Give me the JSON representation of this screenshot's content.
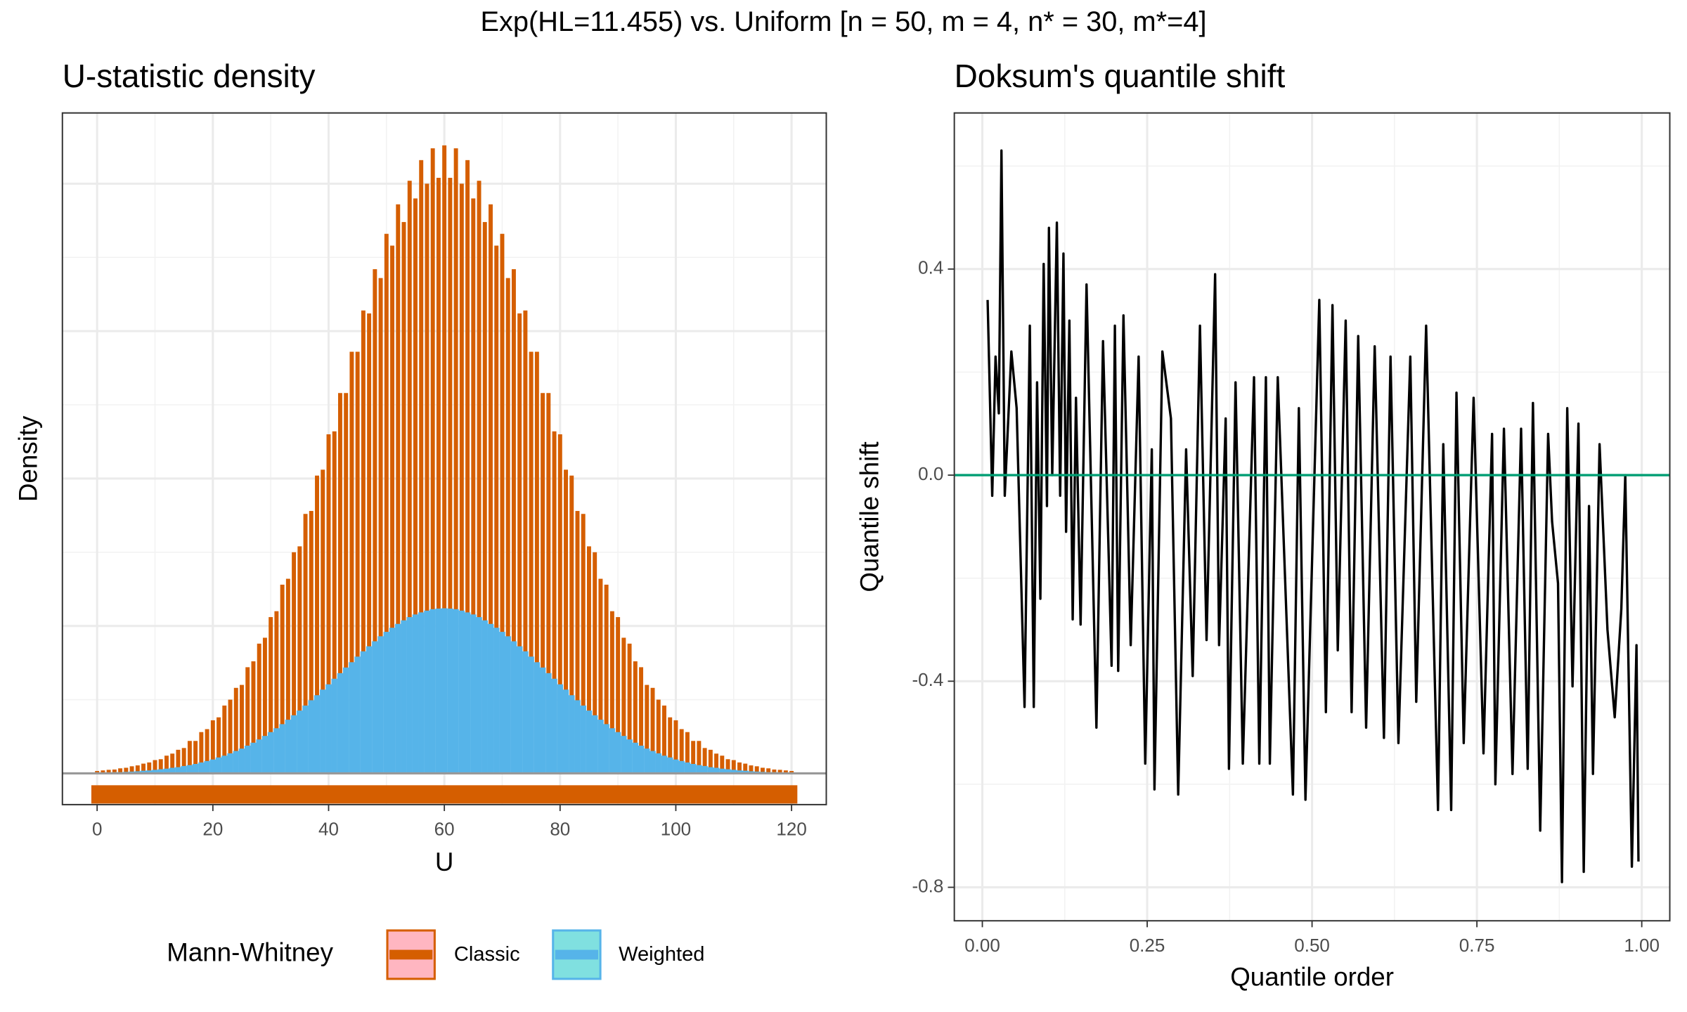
{
  "title": "Exp(HL=11.455) vs. Uniform [n = 50, m = 4, n* = 30, m*=4]",
  "chart_data": [
    {
      "type": "bar",
      "title": "U-statistic density",
      "x_label": "U",
      "y_label": "Density",
      "legend_title": "Mann-Whitney",
      "x": [
        0,
        1,
        2,
        3,
        4,
        5,
        6,
        7,
        8,
        9,
        10,
        11,
        12,
        13,
        14,
        15,
        16,
        17,
        18,
        19,
        20,
        21,
        22,
        23,
        24,
        25,
        26,
        27,
        28,
        29,
        30,
        31,
        32,
        33,
        34,
        35,
        36,
        37,
        38,
        39,
        40,
        41,
        42,
        43,
        44,
        45,
        46,
        47,
        48,
        49,
        50,
        51,
        52,
        53,
        54,
        55,
        56,
        57,
        58,
        59,
        60,
        61,
        62,
        63,
        64,
        65,
        66,
        67,
        68,
        69,
        70,
        71,
        72,
        73,
        74,
        75,
        76,
        77,
        78,
        79,
        80,
        81,
        82,
        83,
        84,
        85,
        86,
        87,
        88,
        89,
        90,
        91,
        92,
        93,
        94,
        95,
        96,
        97,
        98,
        99,
        100,
        101,
        102,
        103,
        104,
        105,
        106,
        107,
        108,
        109,
        110,
        111,
        112,
        113,
        114,
        115,
        116,
        117,
        118,
        119,
        120
      ],
      "series": [
        {
          "name": "Classic",
          "color": "#d55e00",
          "legend_fill": "#ffb6c1",
          "values": [
            0.08,
            0.1,
            0.12,
            0.13,
            0.17,
            0.19,
            0.24,
            0.27,
            0.33,
            0.37,
            0.45,
            0.48,
            0.6,
            0.67,
            0.8,
            0.86,
            1.1,
            1.1,
            1.4,
            1.5,
            1.8,
            1.9,
            2.3,
            2.5,
            2.9,
            3.0,
            3.6,
            3.8,
            4.4,
            4.6,
            5.3,
            5.5,
            6.4,
            6.6,
            7.5,
            7.7,
            8.8,
            8.9,
            10.1,
            10.3,
            11.5,
            11.6,
            12.9,
            12.9,
            14.3,
            14.3,
            15.7,
            15.6,
            17.1,
            16.8,
            18.3,
            17.9,
            19.3,
            18.7,
            20.1,
            19.5,
            20.8,
            20.0,
            21.2,
            20.2,
            21.3,
            20.2,
            21.2,
            20.0,
            20.8,
            19.5,
            20.1,
            18.7,
            19.3,
            17.9,
            18.3,
            16.8,
            17.1,
            15.6,
            15.7,
            14.3,
            14.3,
            12.9,
            12.9,
            11.6,
            11.5,
            10.3,
            10.1,
            8.9,
            8.8,
            7.7,
            7.5,
            6.6,
            6.4,
            5.5,
            5.3,
            4.6,
            4.4,
            3.8,
            3.6,
            3.0,
            2.9,
            2.5,
            2.3,
            1.9,
            1.8,
            1.5,
            1.4,
            1.1,
            1.1,
            0.86,
            0.8,
            0.67,
            0.6,
            0.48,
            0.45,
            0.37,
            0.33,
            0.27,
            0.24,
            0.19,
            0.17,
            0.13,
            0.12,
            0.1,
            0.08
          ]
        },
        {
          "name": "Weighted",
          "color": "#56b4e9",
          "legend_fill": "#80e0e0",
          "values": [
            0.02,
            0.03,
            0.03,
            0.04,
            0.04,
            0.05,
            0.06,
            0.07,
            0.09,
            0.1,
            0.12,
            0.14,
            0.16,
            0.19,
            0.21,
            0.25,
            0.28,
            0.32,
            0.37,
            0.42,
            0.47,
            0.54,
            0.6,
            0.68,
            0.76,
            0.84,
            0.94,
            1.04,
            1.15,
            1.27,
            1.4,
            1.53,
            1.67,
            1.82,
            1.97,
            2.13,
            2.3,
            2.48,
            2.65,
            2.84,
            3.02,
            3.21,
            3.4,
            3.59,
            3.77,
            3.96,
            4.14,
            4.31,
            4.48,
            4.65,
            4.8,
            4.94,
            5.07,
            5.19,
            5.3,
            5.39,
            5.46,
            5.52,
            5.57,
            5.59,
            5.6,
            5.59,
            5.57,
            5.52,
            5.46,
            5.39,
            5.3,
            5.19,
            5.07,
            4.94,
            4.8,
            4.65,
            4.48,
            4.31,
            4.14,
            3.96,
            3.77,
            3.59,
            3.4,
            3.21,
            3.02,
            2.84,
            2.65,
            2.48,
            2.3,
            2.13,
            1.97,
            1.82,
            1.67,
            1.53,
            1.4,
            1.27,
            1.15,
            1.04,
            0.94,
            0.84,
            0.76,
            0.68,
            0.6,
            0.54,
            0.47,
            0.42,
            0.37,
            0.32,
            0.28,
            0.25,
            0.21,
            0.19,
            0.16,
            0.14,
            0.12,
            0.1,
            0.09,
            0.07,
            0.06,
            0.05,
            0.04,
            0.04,
            0.03,
            0.03,
            0.02
          ]
        }
      ],
      "xlim": [
        -6,
        126
      ],
      "xticks": [
        0,
        20,
        40,
        60,
        80,
        100,
        120
      ],
      "ylim": [
        -1.06,
        22.4
      ],
      "yticks": [
        0,
        5,
        10,
        15,
        20
      ],
      "ytick_labels": false,
      "grid": true,
      "legend": "bottom"
    },
    {
      "type": "line",
      "title": "Doksum's quantile shift",
      "x_label": "Quantile order",
      "y_label": "Quantile shift",
      "x": [
        0.008,
        0.015,
        0.02,
        0.025,
        0.029,
        0.034,
        0.044,
        0.052,
        0.064,
        0.072,
        0.078,
        0.083,
        0.088,
        0.093,
        0.098,
        0.101,
        0.106,
        0.113,
        0.118,
        0.123,
        0.127,
        0.132,
        0.137,
        0.142,
        0.149,
        0.158,
        0.173,
        0.183,
        0.196,
        0.201,
        0.206,
        0.214,
        0.225,
        0.237,
        0.247,
        0.257,
        0.261,
        0.273,
        0.286,
        0.297,
        0.309,
        0.319,
        0.33,
        0.34,
        0.353,
        0.359,
        0.369,
        0.374,
        0.384,
        0.395,
        0.412,
        0.42,
        0.43,
        0.436,
        0.448,
        0.471,
        0.48,
        0.49,
        0.511,
        0.521,
        0.531,
        0.539,
        0.551,
        0.56,
        0.57,
        0.582,
        0.595,
        0.609,
        0.619,
        0.631,
        0.649,
        0.658,
        0.673,
        0.691,
        0.699,
        0.711,
        0.719,
        0.73,
        0.745,
        0.76,
        0.773,
        0.778,
        0.791,
        0.804,
        0.817,
        0.827,
        0.835,
        0.846,
        0.858,
        0.864,
        0.873,
        0.879,
        0.887,
        0.895,
        0.904,
        0.912,
        0.92,
        0.926,
        0.936,
        0.948,
        0.959,
        0.969,
        0.975,
        0.985,
        0.992,
        0.995
      ],
      "series": [
        {
          "name": "Quantile shift",
          "color": "#000000",
          "values": [
            0.34,
            -0.04,
            0.23,
            0.12,
            0.63,
            -0.04,
            0.24,
            0.13,
            -0.45,
            0.29,
            -0.45,
            0.18,
            -0.24,
            0.41,
            -0.06,
            0.48,
            0,
            0.49,
            -0.04,
            0.43,
            -0.11,
            0.3,
            -0.28,
            0.15,
            -0.29,
            0.37,
            -0.49,
            0.26,
            -0.37,
            0.29,
            -0.38,
            0.31,
            -0.33,
            0.23,
            -0.56,
            0.05,
            -0.61,
            0.24,
            0.11,
            -0.62,
            0.05,
            -0.39,
            0.29,
            -0.32,
            0.39,
            -0.33,
            0.11,
            -0.57,
            0.18,
            -0.56,
            0.19,
            -0.56,
            0.19,
            -0.56,
            0.19,
            -0.62,
            0.13,
            -0.63,
            0.34,
            -0.46,
            0.33,
            -0.34,
            0.3,
            -0.46,
            0.27,
            -0.49,
            0.25,
            -0.51,
            0.23,
            -0.52,
            0.23,
            -0.44,
            0.29,
            -0.65,
            0.06,
            -0.65,
            0.16,
            -0.52,
            0.15,
            -0.54,
            0.08,
            -0.6,
            0.09,
            -0.58,
            0.09,
            -0.57,
            0.14,
            -0.69,
            0.08,
            -0.09,
            -0.21,
            -0.79,
            0.13,
            -0.41,
            0.1,
            -0.77,
            -0.06,
            -0.58,
            0.06,
            -0.3,
            -0.47,
            -0.26,
            0,
            -0.76,
            -0.33,
            -0.75
          ]
        }
      ],
      "hline": 0,
      "hline_color": "#009e73",
      "xlim": [
        -0.0425,
        1.0425
      ],
      "xticks": [
        {
          "value": 0,
          "label": "0.00"
        },
        {
          "value": 0.25,
          "label": "0.25"
        },
        {
          "value": 0.5,
          "label": "0.50"
        },
        {
          "value": 0.75,
          "label": "0.75"
        },
        {
          "value": 1,
          "label": "1.00"
        }
      ],
      "ylim": [
        -0.865,
        0.703
      ],
      "yticks": [
        -0.8,
        -0.4,
        {
          "value": 0,
          "label": "0.0"
        },
        0.4
      ],
      "grid": true
    }
  ]
}
